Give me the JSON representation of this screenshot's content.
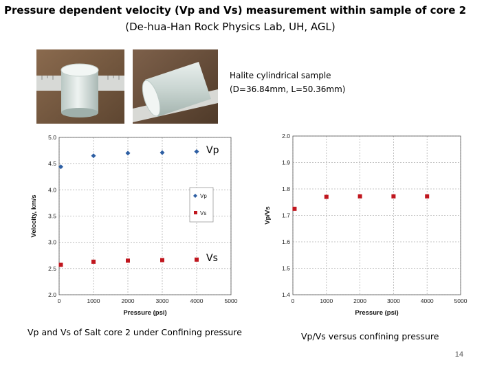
{
  "header": {
    "title": "Pressure dependent velocity (Vp and Vs) measurement within sample of core 2",
    "subtitle": "(De-hua-Han Rock Physics Lab, UH, AGL)"
  },
  "sample": {
    "line1": "Halite cylindrical sample",
    "line2": "(D=36.84mm, L=50.36mm)"
  },
  "captions": {
    "left": "Vp and Vs of Salt core 2 under Confining pressure",
    "right": "Vp/Vs versus confining pressure"
  },
  "page_number": "14",
  "chart_data": [
    {
      "type": "scatter",
      "xlabel": "Pressure (psi)",
      "ylabel": "Velocity, km/s",
      "xlim": [
        0,
        5000
      ],
      "ylim": [
        2.0,
        5.0
      ],
      "xticks": [
        "0",
        "1000",
        "2000",
        "3000",
        "4000",
        "5000"
      ],
      "yticks": [
        "2.0",
        "2.5",
        "3.0",
        "3.5",
        "4.0",
        "4.5",
        "5.0"
      ],
      "grid": true,
      "legend_position": "right",
      "annotations": {
        "vp": "Vp",
        "vs": "Vs"
      },
      "series": [
        {
          "name": "Vp",
          "marker": "diamond",
          "color": "#2e5fa3",
          "x": [
            50,
            1000,
            2000,
            3000,
            4000
          ],
          "y": [
            4.44,
            4.65,
            4.7,
            4.71,
            4.73
          ]
        },
        {
          "name": "Vs",
          "marker": "square",
          "color": "#c0161e",
          "x": [
            50,
            1000,
            2000,
            3000,
            4000
          ],
          "y": [
            2.57,
            2.63,
            2.65,
            2.66,
            2.67
          ]
        }
      ]
    },
    {
      "type": "scatter",
      "xlabel": "Pressure (psi)",
      "ylabel": "Vp/Vs",
      "xlim": [
        0,
        5000
      ],
      "ylim": [
        1.4,
        2.0
      ],
      "xticks": [
        "0",
        "1000",
        "2000",
        "3000",
        "4000",
        "5000"
      ],
      "yticks": [
        "1.4",
        "1.5",
        "1.6",
        "1.7",
        "1.8",
        "1.9",
        "2.0"
      ],
      "grid": true,
      "series": [
        {
          "marker": "square",
          "color": "#c0161e",
          "x": [
            50,
            1000,
            2000,
            3000,
            4000
          ],
          "y": [
            1.725,
            1.77,
            1.772,
            1.772,
            1.772
          ]
        }
      ]
    }
  ]
}
